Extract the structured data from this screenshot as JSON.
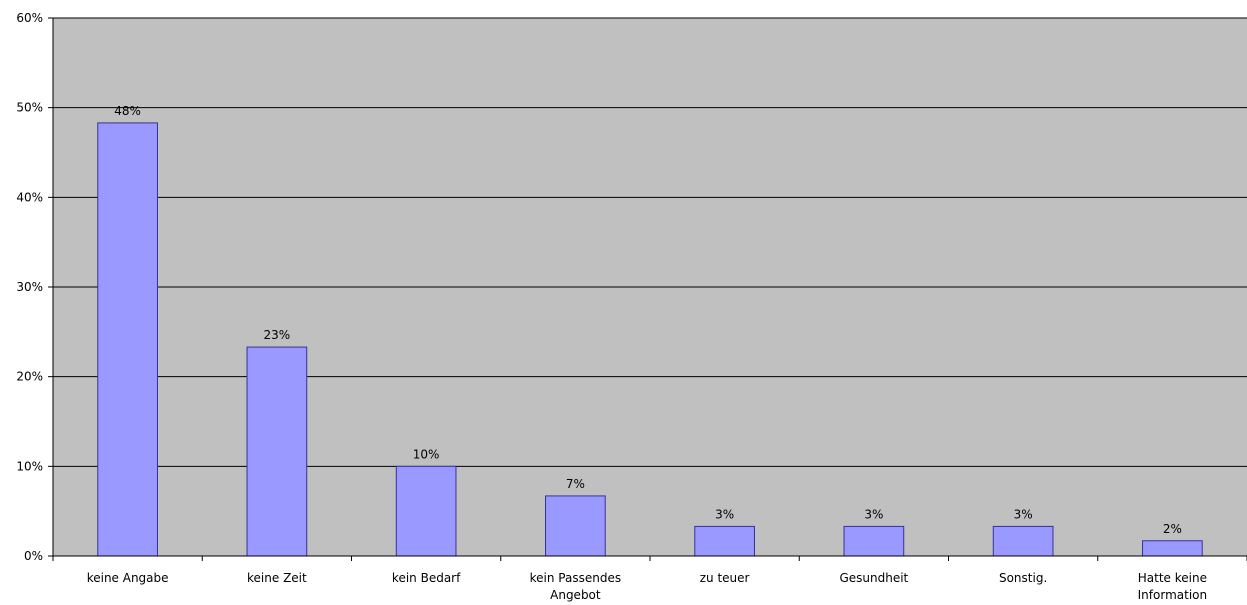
{
  "chart_data": {
    "type": "bar",
    "title": "",
    "xlabel": "",
    "ylabel": "",
    "ylim": [
      0,
      60
    ],
    "yticks": [
      0,
      10,
      20,
      30,
      40,
      50,
      60
    ],
    "ytick_suffix": "%",
    "grid": true,
    "legend": "none",
    "categories": [
      [
        "keine Angabe"
      ],
      [
        "keine Zeit"
      ],
      [
        "kein Bedarf"
      ],
      [
        "kein Passendes",
        "Angebot"
      ],
      [
        "zu teuer"
      ],
      [
        "Gesundheit"
      ],
      [
        "Sonstig."
      ],
      [
        "Hatte keine",
        "Information"
      ]
    ],
    "values": [
      48.3,
      23.3,
      10,
      6.7,
      3.3,
      3.3,
      3.3,
      1.7
    ],
    "data_labels": [
      "48%",
      "23%",
      "10%",
      "7%",
      "3%",
      "3%",
      "3%",
      "2%"
    ],
    "colors": {
      "plot_background": "#c0c0c0",
      "bar_fill": "#9999ff",
      "bar_stroke": "#333399",
      "gridline": "#000000"
    }
  }
}
